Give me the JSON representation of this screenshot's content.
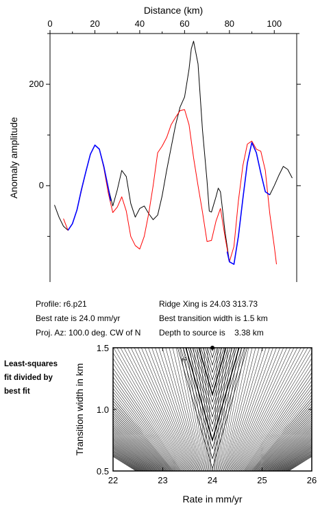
{
  "chart_data": [
    {
      "type": "line",
      "xlabel": "Distance (km)",
      "ylabel": "Anomaly amplitude",
      "xlim": [
        0,
        110
      ],
      "ylim": [
        -190,
        300
      ],
      "xticks": [
        0,
        20,
        40,
        60,
        80,
        100
      ],
      "yticks": [
        0,
        200
      ],
      "series": [
        {
          "color": "#000000",
          "x": [
            2,
            4,
            6,
            8,
            10,
            12,
            14,
            16,
            18,
            20,
            22,
            24,
            26,
            28,
            30,
            32,
            34,
            36,
            38,
            40,
            42,
            44,
            46,
            48,
            50,
            52,
            54,
            56,
            58,
            60,
            62,
            63,
            64,
            66,
            68,
            70,
            71,
            72,
            74,
            75,
            76,
            77,
            78,
            80,
            82,
            84,
            86,
            88,
            90,
            92,
            94,
            96,
            98,
            100,
            102,
            104,
            106,
            108
          ],
          "y": [
            -38,
            -62,
            -80,
            -88,
            -75,
            -48,
            -8,
            28,
            62,
            80,
            72,
            38,
            -5,
            -40,
            -8,
            30,
            18,
            -35,
            -62,
            -45,
            -40,
            -55,
            -67,
            -58,
            -20,
            30,
            75,
            120,
            155,
            175,
            230,
            270,
            285,
            240,
            110,
            10,
            -50,
            -52,
            -22,
            -5,
            -12,
            -50,
            -90,
            -150,
            -155,
            -100,
            -25,
            45,
            85,
            65,
            25,
            -12,
            -18,
            0,
            20,
            38,
            32,
            15
          ]
        },
        {
          "color": "#ff0000",
          "x": [
            6,
            8,
            10,
            12,
            14,
            16,
            18,
            20,
            22,
            24,
            26,
            28,
            30,
            32,
            34,
            36,
            38,
            40,
            42,
            44,
            46,
            48,
            50,
            52,
            54,
            56,
            58,
            60,
            62,
            64,
            66,
            68,
            70,
            72,
            74,
            76,
            78,
            80,
            82,
            84,
            86,
            88,
            90,
            92,
            94,
            96,
            98,
            100,
            101
          ],
          "y": [
            -65,
            -88,
            -75,
            -48,
            -10,
            28,
            62,
            80,
            72,
            35,
            -15,
            -53,
            -42,
            -22,
            -50,
            -100,
            -118,
            -125,
            -100,
            -55,
            0,
            65,
            78,
            95,
            120,
            135,
            148,
            150,
            120,
            55,
            0,
            -52,
            -110,
            -108,
            -70,
            -45,
            -100,
            -150,
            -120,
            -30,
            40,
            82,
            88,
            72,
            68,
            30,
            -55,
            -120,
            -155
          ]
        },
        {
          "color": "#0000ff",
          "x": [
            8,
            10,
            12,
            14,
            16,
            18,
            20,
            22,
            24,
            26,
            27
          ],
          "y": [
            -88,
            -75,
            -48,
            -8,
            28,
            62,
            80,
            72,
            38,
            -5,
            -30
          ]
        },
        {
          "color": "#0000ff",
          "x": [
            79,
            80,
            82,
            84,
            86,
            88,
            90,
            92,
            94,
            96,
            98
          ],
          "y": [
            -130,
            -150,
            -155,
            -100,
            -25,
            45,
            85,
            65,
            25,
            -12,
            -18
          ]
        }
      ]
    },
    {
      "type": "contour",
      "xlabel": "Rate in mm/yr",
      "ylabel": "Transition width in km",
      "xlim": [
        22,
        26
      ],
      "ylim": [
        0.5,
        1.5
      ],
      "xticks": [
        22,
        23,
        24,
        25,
        26
      ],
      "yticks": [
        0.5,
        1.0,
        1.5
      ],
      "best_fit": {
        "x": 24.0,
        "y": 1.5
      },
      "contour_label": "2"
    }
  ],
  "info": {
    "profile": "Profile: r6.p21",
    "best_rate": "Best rate is 24.0 mm/yr",
    "proj_az": "Proj. Az: 100.0 deg. CW of N",
    "ridge_xing": "Ridge Xing is 24.03 313.73",
    "best_transition": "Best transition width is 1.5 km",
    "depth_label": "Depth to source is",
    "depth_value": "3.38 km"
  },
  "side_note": [
    "Least-squares",
    "fit divided by",
    "best fit"
  ]
}
